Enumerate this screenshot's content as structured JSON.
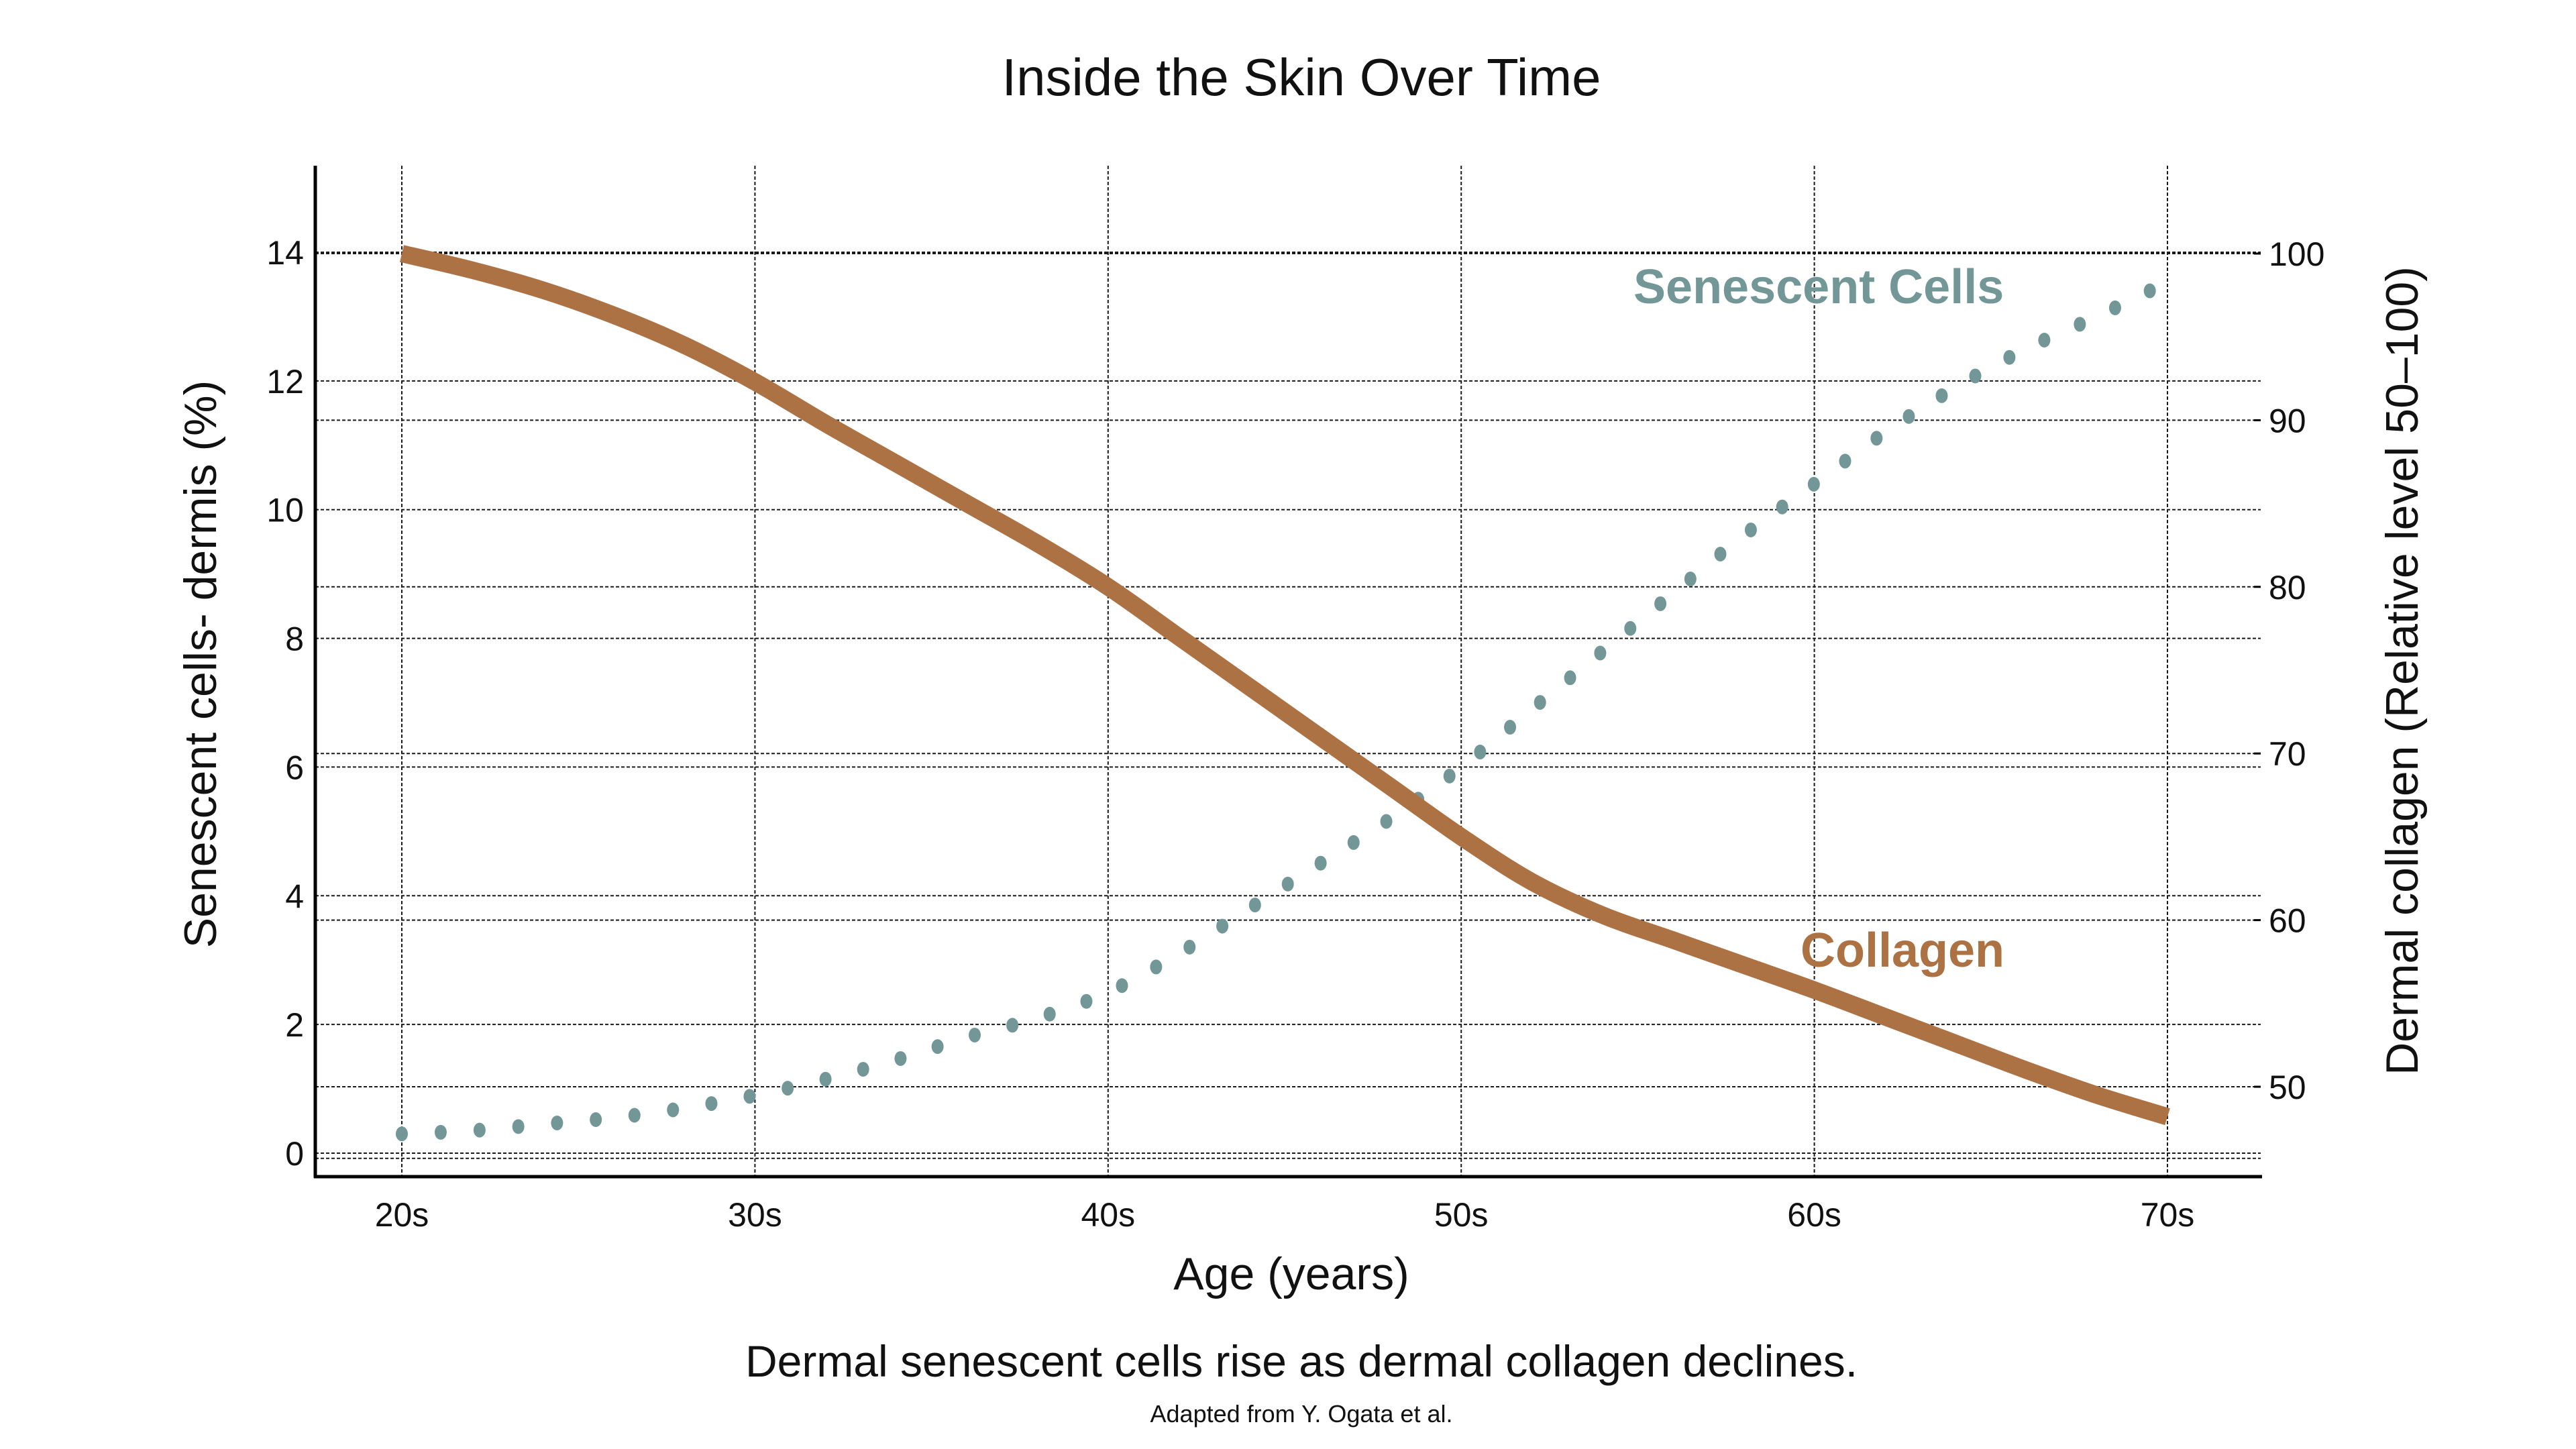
{
  "title": "Inside the Skin Over Time",
  "caption": "Dermal senescent cells rise as dermal collagen declines.",
  "credit": "Adapted from Y. Ogata et al.",
  "colors": {
    "senescent": "#739797",
    "collagen": "#AD7244",
    "axis": "#000000",
    "grid": "#1a1a1a"
  },
  "chart_data": {
    "type": "line",
    "title": "Inside the Skin Over Time",
    "xlabel": "Age (years)",
    "ylabel": "Senescent cells- dermis (%)",
    "ylabel_right": "Dermal collagen (Relative level 50–100)",
    "categories": [
      "20s",
      "30s",
      "40s",
      "50s",
      "60s",
      "70s"
    ],
    "x": [
      20,
      30,
      40,
      50,
      60,
      70
    ],
    "ylim": [
      -0.4,
      15.4
    ],
    "ylim_right": [
      45,
      104
    ],
    "yticks": [
      0,
      2,
      4,
      6,
      8,
      10,
      12,
      14
    ],
    "yticks_right": [
      50,
      60,
      70,
      80,
      90,
      100
    ],
    "grid": true,
    "legend": "inline labels",
    "series": [
      {
        "name": "Senescent Cells",
        "axis": "left",
        "style": "dotted",
        "x": [
          20,
          22,
          24,
          26,
          28,
          30,
          32,
          34,
          36,
          38,
          40,
          42,
          44,
          46,
          48,
          50,
          52,
          54,
          56,
          58,
          60,
          62,
          64,
          66,
          68,
          69.5
        ],
        "values": [
          0.3,
          0.35,
          0.45,
          0.55,
          0.7,
          0.9,
          1.15,
          1.45,
          1.8,
          2.1,
          2.5,
          3.1,
          3.8,
          4.5,
          5.2,
          6.0,
          6.9,
          7.8,
          8.7,
          9.6,
          10.4,
          11.2,
          11.9,
          12.5,
          13.0,
          13.4
        ]
      },
      {
        "name": "Collagen",
        "axis": "right",
        "style": "solid",
        "x": [
          20,
          22,
          24,
          26,
          28,
          30,
          32,
          34,
          36,
          38,
          40,
          42,
          44,
          46,
          48,
          50,
          52,
          54,
          56,
          58,
          60,
          62,
          64,
          66,
          68,
          70
        ],
        "values": [
          100,
          99.0,
          97.8,
          96.3,
          94.5,
          92.3,
          89.8,
          87.4,
          85.0,
          82.6,
          80.0,
          77.0,
          74.0,
          71.0,
          68.0,
          65.0,
          62.3,
          60.3,
          58.8,
          57.3,
          55.8,
          54.2,
          52.6,
          51.0,
          49.5,
          48.2
        ]
      }
    ]
  },
  "axes": {
    "x_label": "Age (years)",
    "y_left_label": "Senescent cells- dermis (%)",
    "y_right_label": "Dermal collagen (Relative level 50–100)",
    "x_ticks": [
      "20s",
      "30s",
      "40s",
      "50s",
      "60s",
      "70s"
    ],
    "y_left_ticks": [
      "14",
      "12",
      "10",
      "8",
      "6",
      "4",
      "2",
      "0"
    ],
    "y_right_ticks": [
      "100",
      "90",
      "80",
      "70",
      "60",
      "50"
    ]
  },
  "labels": {
    "senescent": "Senescent Cells",
    "collagen": "Collagen"
  }
}
